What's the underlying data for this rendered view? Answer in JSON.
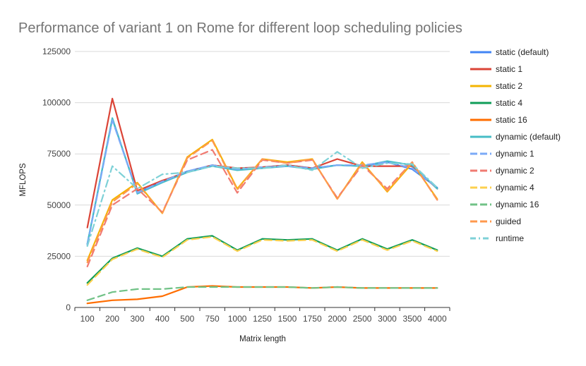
{
  "chart_data": {
    "type": "line",
    "title": "Performance of variant 1 on Rome for different loop scheduling policies",
    "xlabel": "Matrix length",
    "ylabel": "MFLOPS",
    "categories": [
      "100",
      "200",
      "300",
      "400",
      "500",
      "750",
      "1000",
      "1250",
      "1500",
      "1750",
      "2000",
      "2500",
      "3000",
      "3500",
      "4000"
    ],
    "ylim": [
      0,
      125000
    ],
    "yticks": [
      0,
      25000,
      50000,
      75000,
      100000,
      125000
    ],
    "ytick_labels": [
      "0",
      "25000",
      "50000",
      "75000",
      "100000",
      "125000"
    ],
    "grid": true,
    "legend_position": "right",
    "series": [
      {
        "name": "static (default)",
        "color": "#4285f4",
        "dash": "solid",
        "values": [
          31000,
          92000,
          56000,
          61500,
          66500,
          69500,
          67500,
          68500,
          69500,
          68000,
          69500,
          69000,
          71000,
          67500,
          58500
        ]
      },
      {
        "name": "static 1",
        "color": "#db4437",
        "dash": "solid",
        "values": [
          39000,
          102000,
          57000,
          62000,
          66000,
          69500,
          68000,
          68500,
          69500,
          68000,
          72500,
          69000,
          69000,
          69000,
          58000
        ]
      },
      {
        "name": "static 2",
        "color": "#f4b400",
        "dash": "solid",
        "values": [
          23000,
          52500,
          61000,
          46000,
          73500,
          82000,
          58000,
          72500,
          71000,
          72500,
          53000,
          71000,
          56500,
          70500,
          53000
        ]
      },
      {
        "name": "static 4",
        "color": "#0f9d58",
        "dash": "solid",
        "values": [
          12000,
          24000,
          29000,
          25000,
          33500,
          35000,
          28000,
          33500,
          33000,
          33500,
          28000,
          33500,
          28500,
          33000,
          28000
        ]
      },
      {
        "name": "static 16",
        "color": "#ff6d00",
        "dash": "solid",
        "values": [
          2000,
          3500,
          4000,
          5500,
          10000,
          10500,
          10000,
          10000,
          10000,
          9500,
          10000,
          9500,
          9500,
          9500,
          9500
        ]
      },
      {
        "name": "dynamic (default)",
        "color": "#46bdc6",
        "dash": "solid",
        "values": [
          31000,
          92500,
          55500,
          61000,
          66000,
          69000,
          67000,
          68000,
          69000,
          67500,
          69500,
          69000,
          71500,
          69500,
          58000
        ]
      },
      {
        "name": "dynamic 1",
        "color": "#7baaf7",
        "dash": "dash",
        "values": [
          30500,
          91500,
          56000,
          61500,
          66500,
          69500,
          67500,
          68500,
          69000,
          68000,
          69500,
          69500,
          71000,
          68000,
          58500
        ]
      },
      {
        "name": "dynamic 2",
        "color": "#f07b72",
        "dash": "dash",
        "values": [
          20000,
          50000,
          58000,
          46500,
          72000,
          77000,
          56000,
          72000,
          70500,
          72000,
          53500,
          69500,
          58000,
          71000,
          52500
        ]
      },
      {
        "name": "dynamic 4",
        "color": "#fcd04f",
        "dash": "dash",
        "values": [
          11000,
          23500,
          28500,
          24500,
          33000,
          34500,
          27500,
          33000,
          32500,
          33000,
          27500,
          33000,
          28000,
          32500,
          27500
        ]
      },
      {
        "name": "dynamic 16",
        "color": "#71c287",
        "dash": "dash",
        "values": [
          3500,
          7500,
          9000,
          9000,
          10000,
          10000,
          10000,
          10000,
          10000,
          9500,
          10000,
          9500,
          9500,
          9500,
          9500
        ]
      },
      {
        "name": "guided",
        "color": "#ff994d",
        "dash": "dash",
        "values": [
          22000,
          51500,
          60500,
          46000,
          73000,
          81500,
          57500,
          72500,
          70500,
          72500,
          53000,
          70500,
          57000,
          71000,
          52500
        ]
      },
      {
        "name": "runtime",
        "color": "#7ed1d7",
        "dash": "dashdot",
        "values": [
          30000,
          69000,
          58000,
          65000,
          66000,
          69000,
          68000,
          68000,
          69500,
          67000,
          76000,
          68000,
          70500,
          70000,
          58500
        ]
      }
    ]
  }
}
